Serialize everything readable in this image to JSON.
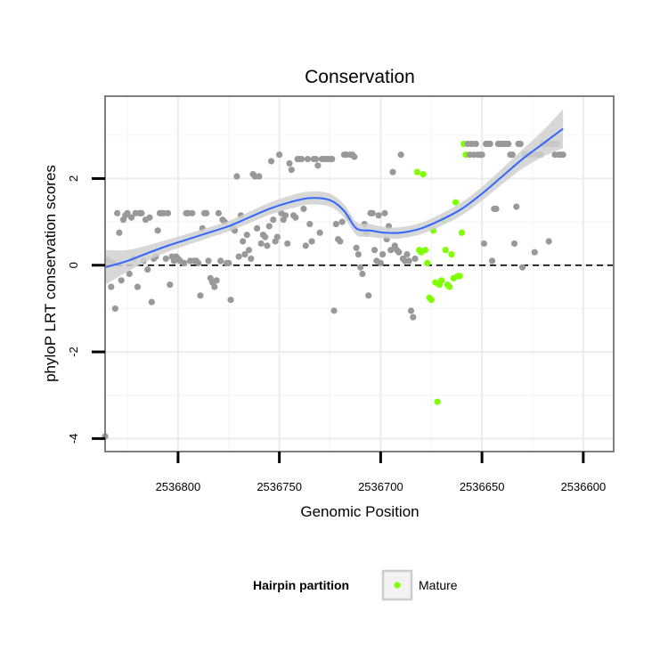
{
  "chart_data": {
    "type": "scatter",
    "title": "Conservation",
    "xlabel": "Genomic Position",
    "ylabel": "phyloP LRT conservation scores",
    "x_reversed": true,
    "xlim": [
      2536836,
      2536585
    ],
    "ylim": [
      -4.3,
      3.9
    ],
    "x_ticks": [
      2536800,
      2536750,
      2536700,
      2536650,
      2536600
    ],
    "y_ticks": [
      -4,
      -2,
      0,
      2
    ],
    "x_tick_labels": [
      "2536800",
      "2536750",
      "2536700",
      "2536650",
      "2536600"
    ],
    "y_tick_labels": [
      "-4",
      "-2",
      "0",
      "2"
    ],
    "grid": true,
    "reference_line": {
      "y": 0,
      "style": "dashed",
      "color": "#000000"
    },
    "legend": {
      "title": "Hairpin partition",
      "position": "bottom",
      "entries": [
        {
          "label": "Mature",
          "color": "#7fff00"
        }
      ]
    },
    "colors": {
      "other": "#999999",
      "mature": "#7fff00",
      "smooth": "#3366ff",
      "band": "#d0d0d0",
      "panel_border": "#7f7f7f"
    },
    "series": [
      {
        "class": "other",
        "points": [
          [
            2536836,
            -3.95
          ],
          [
            2536835,
            0.12
          ],
          [
            2536834,
            0.1
          ],
          [
            2536833,
            -0.5
          ],
          [
            2536832,
            0.05
          ],
          [
            2536831,
            -1
          ],
          [
            2536830,
            1.2
          ],
          [
            2536829,
            0.75
          ],
          [
            2536828,
            -0.35
          ],
          [
            2536827,
            1.05
          ],
          [
            2536826,
            1.15
          ],
          [
            2536825,
            1.2
          ],
          [
            2536824,
            -0.2
          ],
          [
            2536823,
            1.1
          ],
          [
            2536822,
            0.15
          ],
          [
            2536821,
            1.2
          ],
          [
            2536820,
            -0.5
          ],
          [
            2536819,
            1.2
          ],
          [
            2536818,
            1.2
          ],
          [
            2536817,
            0.1
          ],
          [
            2536816,
            1.05
          ],
          [
            2536815,
            -0.1
          ],
          [
            2536814,
            1.1
          ],
          [
            2536813,
            -0.85
          ],
          [
            2536812,
            0.15
          ],
          [
            2536811,
            0.2
          ],
          [
            2536810,
            0.8
          ],
          [
            2536809,
            1.2
          ],
          [
            2536808,
            1.2
          ],
          [
            2536807,
            1.2
          ],
          [
            2536806,
            0.15
          ],
          [
            2536805,
            1.2
          ],
          [
            2536804,
            -0.45
          ],
          [
            2536803,
            0.2
          ],
          [
            2536802,
            0.1
          ],
          [
            2536801,
            0.2
          ],
          [
            2536800,
            0.15
          ],
          [
            2536799,
            0.1
          ],
          [
            2536797,
            0.05
          ],
          [
            2536796,
            1.2
          ],
          [
            2536795,
            1.2
          ],
          [
            2536794,
            0.1
          ],
          [
            2536793,
            1.2
          ],
          [
            2536792,
            0.1
          ],
          [
            2536791,
            0.1
          ],
          [
            2536790,
            0.05
          ],
          [
            2536789,
            -0.7
          ],
          [
            2536788,
            0.85
          ],
          [
            2536787,
            1.2
          ],
          [
            2536786,
            1.2
          ],
          [
            2536785,
            0.1
          ],
          [
            2536784,
            -0.3
          ],
          [
            2536783,
            -0.4
          ],
          [
            2536782,
            -0.5
          ],
          [
            2536781,
            -0.35
          ],
          [
            2536780,
            1.2
          ],
          [
            2536779,
            0.1
          ],
          [
            2536778,
            1.05
          ],
          [
            2536777,
            1
          ],
          [
            2536776,
            0.05
          ],
          [
            2536775,
            0.05
          ],
          [
            2536774,
            -0.8
          ],
          [
            2536773,
            0.85
          ],
          [
            2536772,
            0.8
          ],
          [
            2536771,
            2.05
          ],
          [
            2536770,
            0.2
          ],
          [
            2536769,
            1.15
          ],
          [
            2536768,
            0.55
          ],
          [
            2536767,
            0.25
          ],
          [
            2536766,
            0.7
          ],
          [
            2536765,
            0.35
          ],
          [
            2536764,
            0.15
          ],
          [
            2536763,
            2.1
          ],
          [
            2536762,
            2.05
          ],
          [
            2536761,
            0.85
          ],
          [
            2536760,
            2.05
          ],
          [
            2536759,
            0.5
          ],
          [
            2536758,
            0.7
          ],
          [
            2536757,
            0.65
          ],
          [
            2536756,
            0.45
          ],
          [
            2536755,
            0.9
          ],
          [
            2536754,
            2.4
          ],
          [
            2536753,
            1.05
          ],
          [
            2536752,
            0.55
          ],
          [
            2536751,
            0.65
          ],
          [
            2536750,
            2.55
          ],
          [
            2536749,
            1.2
          ],
          [
            2536748,
            1.05
          ],
          [
            2536747,
            1.15
          ],
          [
            2536746,
            0.5
          ],
          [
            2536745,
            2.35
          ],
          [
            2536744,
            2.2
          ],
          [
            2536743,
            1.15
          ],
          [
            2536742,
            1.1
          ],
          [
            2536741,
            2.45
          ],
          [
            2536740,
            2.45
          ],
          [
            2536739,
            2.45
          ],
          [
            2536738,
            1.3
          ],
          [
            2536737,
            0.45
          ],
          [
            2536736,
            2.45
          ],
          [
            2536735,
            0.95
          ],
          [
            2536734,
            0.55
          ],
          [
            2536733,
            2.45
          ],
          [
            2536732,
            2.45
          ],
          [
            2536731,
            2.3
          ],
          [
            2536730,
            0.75
          ],
          [
            2536729,
            2.45
          ],
          [
            2536728,
            2.45
          ],
          [
            2536727,
            2.45
          ],
          [
            2536726,
            2.45
          ],
          [
            2536725,
            2.45
          ],
          [
            2536724,
            2.45
          ],
          [
            2536723,
            -1.05
          ],
          [
            2536722,
            0.95
          ],
          [
            2536721,
            0.6
          ],
          [
            2536720,
            0.55
          ],
          [
            2536719,
            1
          ],
          [
            2536718,
            2.55
          ],
          [
            2536717,
            2.55
          ],
          [
            2536716,
            1.1
          ],
          [
            2536715,
            2.55
          ],
          [
            2536714,
            2.55
          ],
          [
            2536713,
            2.5
          ],
          [
            2536712,
            0.4
          ],
          [
            2536711,
            0.25
          ],
          [
            2536710,
            -0.05
          ],
          [
            2536709,
            -0.2
          ],
          [
            2536708,
            0.95
          ],
          [
            2536707,
            0.75
          ],
          [
            2536706,
            -0.7
          ],
          [
            2536705,
            1.2
          ],
          [
            2536704,
            1.2
          ],
          [
            2536703,
            0.35
          ],
          [
            2536702,
            0.1
          ],
          [
            2536701,
            1.15
          ],
          [
            2536700,
            0.05
          ],
          [
            2536699,
            0.25
          ],
          [
            2536698,
            1.2
          ],
          [
            2536697,
            0.6
          ],
          [
            2536696,
            0.9
          ],
          [
            2536695,
            0.35
          ],
          [
            2536694,
            2.15
          ],
          [
            2536693,
            0.45
          ],
          [
            2536692,
            0.35
          ],
          [
            2536691,
            0.3
          ],
          [
            2536690,
            2.55
          ],
          [
            2536689,
            0.15
          ],
          [
            2536688,
            0.1
          ],
          [
            2536687,
            0.25
          ],
          [
            2536686,
            0.1
          ],
          [
            2536685,
            -1.05
          ],
          [
            2536684,
            -1.2
          ],
          [
            2536683,
            0.15
          ]
        ]
      },
      {
        "class": "mature",
        "points": [
          [
            2536682,
            2.15
          ],
          [
            2536681,
            0.35
          ],
          [
            2536680,
            0.3
          ],
          [
            2536679,
            2.1
          ],
          [
            2536678,
            0.35
          ],
          [
            2536677,
            0.05
          ],
          [
            2536676,
            -0.75
          ],
          [
            2536675,
            -0.8
          ],
          [
            2536674,
            0.8
          ],
          [
            2536673,
            -0.4
          ],
          [
            2536672,
            -3.15
          ],
          [
            2536671,
            -0.45
          ],
          [
            2536670,
            -0.35
          ],
          [
            2536669,
            1.05
          ],
          [
            2536668,
            0.35
          ],
          [
            2536667,
            -0.45
          ],
          [
            2536666,
            -0.5
          ],
          [
            2536665,
            0.25
          ],
          [
            2536664,
            -0.3
          ],
          [
            2536663,
            1.45
          ],
          [
            2536662,
            -0.25
          ],
          [
            2536661,
            -0.25
          ],
          [
            2536660,
            0.75
          ],
          [
            2536659,
            2.8
          ],
          [
            2536658,
            2.55
          ]
        ]
      },
      {
        "class": "other",
        "points": [
          [
            2536657,
            2.8
          ],
          [
            2536656,
            2.55
          ],
          [
            2536655,
            2.8
          ],
          [
            2536654,
            2.55
          ],
          [
            2536653,
            2.8
          ],
          [
            2536652,
            2.55
          ],
          [
            2536651,
            2.55
          ],
          [
            2536650,
            2.55
          ],
          [
            2536649,
            0.5
          ],
          [
            2536648,
            2.8
          ],
          [
            2536647,
            2.8
          ],
          [
            2536646,
            2.8
          ],
          [
            2536645,
            0.1
          ],
          [
            2536644,
            1.3
          ],
          [
            2536643,
            1.3
          ],
          [
            2536642,
            2.8
          ],
          [
            2536641,
            2.8
          ],
          [
            2536640,
            2.8
          ],
          [
            2536639,
            2.8
          ],
          [
            2536638,
            2.8
          ],
          [
            2536637,
            2.8
          ],
          [
            2536636,
            2.55
          ],
          [
            2536635,
            2.55
          ],
          [
            2536634,
            0.5
          ],
          [
            2536633,
            1.35
          ],
          [
            2536632,
            2.8
          ],
          [
            2536631,
            2.8
          ],
          [
            2536630,
            -0.05
          ],
          [
            2536629,
            2.55
          ],
          [
            2536628,
            2.55
          ],
          [
            2536627,
            2.55
          ],
          [
            2536626,
            2.55
          ],
          [
            2536625,
            2.55
          ],
          [
            2536624,
            0.3
          ],
          [
            2536623,
            2.55
          ],
          [
            2536622,
            2.55
          ],
          [
            2536621,
            2.55
          ],
          [
            2536620,
            2.8
          ],
          [
            2536619,
            2.8
          ],
          [
            2536618,
            2.8
          ],
          [
            2536617,
            0.55
          ],
          [
            2536616,
            2.8
          ],
          [
            2536615,
            2.8
          ],
          [
            2536614,
            2.55
          ],
          [
            2536613,
            2.8
          ],
          [
            2536612,
            2.55
          ],
          [
            2536611,
            2.55
          ],
          [
            2536610,
            2.55
          ]
        ]
      }
    ],
    "smooth_line": {
      "x": [
        2536836,
        2536825,
        2536815,
        2536805,
        2536795,
        2536785,
        2536775,
        2536765,
        2536755,
        2536745,
        2536735,
        2536725,
        2536718,
        2536712,
        2536705,
        2536698,
        2536690,
        2536680,
        2536670,
        2536660,
        2536650,
        2536640,
        2536630,
        2536620,
        2536610
      ],
      "y": [
        -0.05,
        0.1,
        0.28,
        0.45,
        0.6,
        0.75,
        0.9,
        1.1,
        1.3,
        1.45,
        1.55,
        1.5,
        1.25,
        0.85,
        0.8,
        0.75,
        0.75,
        0.85,
        1.05,
        1.3,
        1.65,
        2.05,
        2.45,
        2.8,
        3.15
      ],
      "band_halfwidth": [
        0.4,
        0.25,
        0.18,
        0.14,
        0.13,
        0.12,
        0.12,
        0.13,
        0.14,
        0.15,
        0.15,
        0.15,
        0.15,
        0.15,
        0.15,
        0.13,
        0.13,
        0.13,
        0.14,
        0.15,
        0.16,
        0.18,
        0.22,
        0.3,
        0.45
      ]
    }
  }
}
